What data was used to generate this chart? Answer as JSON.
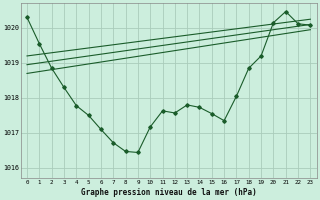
{
  "title": "Graphe pression niveau de la mer (hPa)",
  "background_color": "#cceedd",
  "plot_bg_color": "#cceedd",
  "grid_color": "#aaccbb",
  "line_color": "#1a5c2a",
  "xlim": [
    -0.5,
    23.5
  ],
  "ylim": [
    1015.7,
    1020.7
  ],
  "yticks": [
    1016,
    1017,
    1018,
    1019,
    1020
  ],
  "xtick_labels": [
    "0",
    "1",
    "2",
    "3",
    "4",
    "5",
    "6",
    "7",
    "8",
    "9",
    "10",
    "11",
    "12",
    "13",
    "14",
    "15",
    "16",
    "17",
    "18",
    "19",
    "20",
    "21",
    "22",
    "23"
  ],
  "main_data": [
    [
      0,
      1020.3
    ],
    [
      1,
      1019.55
    ],
    [
      2,
      1018.85
    ],
    [
      3,
      1018.3
    ],
    [
      4,
      1017.78
    ],
    [
      5,
      1017.5
    ],
    [
      6,
      1017.1
    ],
    [
      7,
      1016.72
    ],
    [
      8,
      1016.47
    ],
    [
      9,
      1016.44
    ],
    [
      10,
      1017.17
    ],
    [
      11,
      1017.63
    ],
    [
      12,
      1017.57
    ],
    [
      13,
      1017.8
    ],
    [
      14,
      1017.73
    ],
    [
      15,
      1017.55
    ],
    [
      16,
      1017.35
    ],
    [
      17,
      1018.05
    ],
    [
      18,
      1018.85
    ],
    [
      19,
      1019.2
    ],
    [
      20,
      1020.15
    ],
    [
      21,
      1020.47
    ],
    [
      22,
      1020.12
    ],
    [
      23,
      1020.08
    ]
  ],
  "trend_line1": [
    [
      0,
      1018.7
    ],
    [
      23,
      1019.95
    ]
  ],
  "trend_line2": [
    [
      0,
      1018.95
    ],
    [
      23,
      1020.1
    ]
  ],
  "trend_line3": [
    [
      0,
      1019.2
    ],
    [
      23,
      1020.25
    ]
  ]
}
